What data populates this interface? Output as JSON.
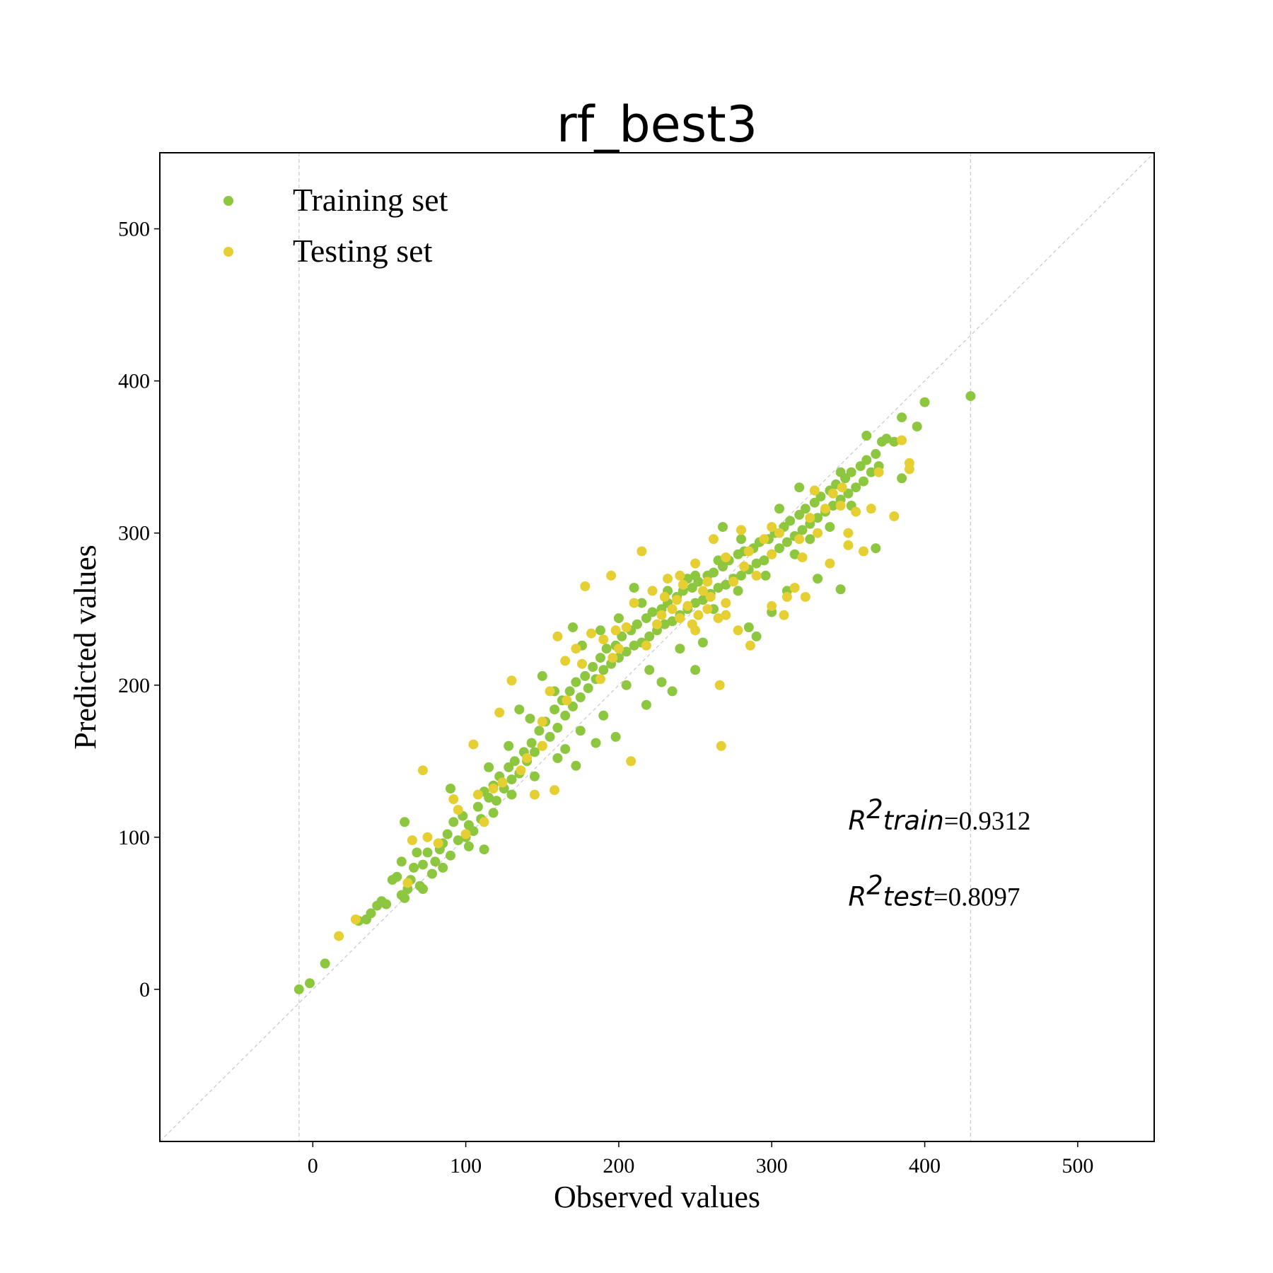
{
  "chart_data": {
    "type": "scatter",
    "title": "rf_best3",
    "xlabel": "Observed values",
    "ylabel": "Predicted values",
    "xlim": [
      -100,
      550
    ],
    "ylim": [
      -100,
      550
    ],
    "xticks": [
      0,
      100,
      200,
      300,
      400,
      500
    ],
    "yticks": [
      0,
      100,
      200,
      300,
      400,
      500
    ],
    "vertical_reference_lines": [
      -9,
      430
    ],
    "diagonal_reference_line": true,
    "legend_position": "upper-left",
    "annotations": {
      "r2_train": {
        "label": "R",
        "sup": "2",
        "name": "train",
        "value": "=0.9312",
        "x": 350,
        "y": 105
      },
      "r2_test": {
        "label": "R",
        "sup": "2",
        "name": "test",
        "value": "=0.8097",
        "x": 350,
        "y": 55
      }
    },
    "series": [
      {
        "name": "Training set",
        "color": "#8dc63f",
        "points": [
          [
            -9,
            0
          ],
          [
            -2,
            4
          ],
          [
            8,
            17
          ],
          [
            30,
            45
          ],
          [
            35,
            46
          ],
          [
            38,
            50
          ],
          [
            42,
            55
          ],
          [
            45,
            58
          ],
          [
            48,
            56
          ],
          [
            52,
            72
          ],
          [
            55,
            74
          ],
          [
            58,
            84
          ],
          [
            60,
            60
          ],
          [
            62,
            66
          ],
          [
            64,
            72
          ],
          [
            66,
            80
          ],
          [
            68,
            90
          ],
          [
            70,
            68
          ],
          [
            72,
            82
          ],
          [
            75,
            90
          ],
          [
            78,
            76
          ],
          [
            80,
            84
          ],
          [
            83,
            92
          ],
          [
            85,
            96
          ],
          [
            88,
            102
          ],
          [
            90,
            88
          ],
          [
            92,
            110
          ],
          [
            95,
            98
          ],
          [
            98,
            114
          ],
          [
            100,
            100
          ],
          [
            102,
            108
          ],
          [
            105,
            104
          ],
          [
            108,
            120
          ],
          [
            110,
            112
          ],
          [
            112,
            130
          ],
          [
            115,
            126
          ],
          [
            118,
            134
          ],
          [
            120,
            124
          ],
          [
            122,
            140
          ],
          [
            125,
            132
          ],
          [
            128,
            146
          ],
          [
            130,
            138
          ],
          [
            132,
            150
          ],
          [
            135,
            142
          ],
          [
            138,
            156
          ],
          [
            140,
            150
          ],
          [
            143,
            162
          ],
          [
            145,
            156
          ],
          [
            148,
            170
          ],
          [
            150,
            160
          ],
          [
            152,
            176
          ],
          [
            155,
            166
          ],
          [
            158,
            184
          ],
          [
            160,
            172
          ],
          [
            163,
            190
          ],
          [
            165,
            180
          ],
          [
            168,
            196
          ],
          [
            170,
            186
          ],
          [
            172,
            202
          ],
          [
            175,
            192
          ],
          [
            178,
            206
          ],
          [
            180,
            198
          ],
          [
            183,
            212
          ],
          [
            185,
            204
          ],
          [
            188,
            218
          ],
          [
            190,
            210
          ],
          [
            192,
            224
          ],
          [
            195,
            214
          ],
          [
            198,
            226
          ],
          [
            200,
            218
          ],
          [
            202,
            232
          ],
          [
            205,
            222
          ],
          [
            208,
            236
          ],
          [
            210,
            226
          ],
          [
            212,
            240
          ],
          [
            215,
            228
          ],
          [
            218,
            244
          ],
          [
            220,
            232
          ],
          [
            222,
            248
          ],
          [
            225,
            236
          ],
          [
            228,
            250
          ],
          [
            230,
            240
          ],
          [
            232,
            254
          ],
          [
            235,
            242
          ],
          [
            238,
            258
          ],
          [
            240,
            246
          ],
          [
            242,
            262
          ],
          [
            245,
            250
          ],
          [
            248,
            264
          ],
          [
            250,
            254
          ],
          [
            252,
            268
          ],
          [
            255,
            256
          ],
          [
            258,
            272
          ],
          [
            260,
            260
          ],
          [
            262,
            274
          ],
          [
            265,
            264
          ],
          [
            268,
            278
          ],
          [
            270,
            266
          ],
          [
            272,
            282
          ],
          [
            275,
            270
          ],
          [
            278,
            286
          ],
          [
            280,
            272
          ],
          [
            282,
            288
          ],
          [
            285,
            276
          ],
          [
            288,
            290
          ],
          [
            290,
            280
          ],
          [
            292,
            294
          ],
          [
            295,
            282
          ],
          [
            298,
            296
          ],
          [
            300,
            286
          ],
          [
            302,
            300
          ],
          [
            305,
            290
          ],
          [
            308,
            304
          ],
          [
            310,
            294
          ],
          [
            312,
            308
          ],
          [
            315,
            298
          ],
          [
            318,
            312
          ],
          [
            320,
            302
          ],
          [
            322,
            316
          ],
          [
            325,
            306
          ],
          [
            328,
            320
          ],
          [
            330,
            310
          ],
          [
            332,
            324
          ],
          [
            335,
            314
          ],
          [
            338,
            328
          ],
          [
            340,
            318
          ],
          [
            342,
            332
          ],
          [
            345,
            322
          ],
          [
            348,
            336
          ],
          [
            350,
            326
          ],
          [
            352,
            340
          ],
          [
            355,
            330
          ],
          [
            358,
            344
          ],
          [
            360,
            334
          ],
          [
            362,
            348
          ],
          [
            365,
            340
          ],
          [
            368,
            352
          ],
          [
            370,
            344
          ],
          [
            372,
            360
          ],
          [
            375,
            362
          ],
          [
            380,
            360
          ],
          [
            385,
            376
          ],
          [
            395,
            370
          ],
          [
            400,
            386
          ],
          [
            430,
            390
          ],
          [
            60,
            110
          ],
          [
            90,
            132
          ],
          [
            112,
            92
          ],
          [
            135,
            184
          ],
          [
            150,
            206
          ],
          [
            160,
            152
          ],
          [
            172,
            147
          ],
          [
            185,
            162
          ],
          [
            198,
            166
          ],
          [
            210,
            264
          ],
          [
            218,
            187
          ],
          [
            228,
            202
          ],
          [
            235,
            196
          ],
          [
            250,
            210
          ],
          [
            268,
            304
          ],
          [
            285,
            238
          ],
          [
            310,
            262
          ],
          [
            345,
            263
          ],
          [
            345,
            340
          ],
          [
            362,
            364
          ],
          [
            368,
            290
          ],
          [
            385,
            336
          ],
          [
            330,
            270
          ],
          [
            300,
            248
          ],
          [
            290,
            232
          ],
          [
            255,
            228
          ],
          [
            240,
            224
          ],
          [
            220,
            210
          ],
          [
            205,
            200
          ],
          [
            190,
            180
          ],
          [
            175,
            170
          ],
          [
            165,
            158
          ],
          [
            145,
            140
          ],
          [
            130,
            128
          ],
          [
            118,
            116
          ],
          [
            102,
            94
          ],
          [
            85,
            80
          ],
          [
            72,
            66
          ],
          [
            58,
            62
          ],
          [
            245,
            270
          ],
          [
            262,
            250
          ],
          [
            278,
            262
          ],
          [
            296,
            272
          ],
          [
            315,
            286
          ],
          [
            325,
            296
          ],
          [
            338,
            304
          ],
          [
            352,
            318
          ],
          [
            318,
            330
          ],
          [
            305,
            316
          ],
          [
            280,
            296
          ],
          [
            265,
            282
          ],
          [
            250,
            272
          ],
          [
            232,
            262
          ],
          [
            215,
            254
          ],
          [
            200,
            244
          ],
          [
            188,
            236
          ],
          [
            176,
            226
          ],
          [
            170,
            238
          ],
          [
            158,
            196
          ],
          [
            142,
            178
          ],
          [
            128,
            160
          ],
          [
            115,
            146
          ]
        ]
      },
      {
        "name": "Testing set",
        "color": "#e6cf33",
        "points": [
          [
            17,
            35
          ],
          [
            28,
            46
          ],
          [
            62,
            70
          ],
          [
            65,
            98
          ],
          [
            72,
            144
          ],
          [
            75,
            100
          ],
          [
            82,
            96
          ],
          [
            92,
            125
          ],
          [
            95,
            118
          ],
          [
            100,
            102
          ],
          [
            105,
            161
          ],
          [
            108,
            128
          ],
          [
            112,
            110
          ],
          [
            118,
            132
          ],
          [
            122,
            182
          ],
          [
            130,
            203
          ],
          [
            140,
            152
          ],
          [
            145,
            128
          ],
          [
            150,
            176
          ],
          [
            155,
            196
          ],
          [
            158,
            131
          ],
          [
            160,
            232
          ],
          [
            165,
            216
          ],
          [
            172,
            224
          ],
          [
            178,
            265
          ],
          [
            182,
            234
          ],
          [
            190,
            230
          ],
          [
            195,
            272
          ],
          [
            198,
            236
          ],
          [
            200,
            224
          ],
          [
            205,
            238
          ],
          [
            208,
            150
          ],
          [
            210,
            254
          ],
          [
            215,
            288
          ],
          [
            218,
            226
          ],
          [
            222,
            262
          ],
          [
            225,
            240
          ],
          [
            228,
            246
          ],
          [
            232,
            270
          ],
          [
            235,
            250
          ],
          [
            238,
            256
          ],
          [
            240,
            244
          ],
          [
            242,
            266
          ],
          [
            245,
            252
          ],
          [
            248,
            240
          ],
          [
            250,
            280
          ],
          [
            252,
            246
          ],
          [
            255,
            262
          ],
          [
            258,
            250
          ],
          [
            260,
            258
          ],
          [
            262,
            296
          ],
          [
            265,
            244
          ],
          [
            266,
            200
          ],
          [
            267,
            160
          ],
          [
            270,
            284
          ],
          [
            275,
            268
          ],
          [
            280,
            302
          ],
          [
            285,
            288
          ],
          [
            290,
            272
          ],
          [
            295,
            296
          ],
          [
            300,
            286
          ],
          [
            305,
            300
          ],
          [
            310,
            258
          ],
          [
            315,
            264
          ],
          [
            320,
            284
          ],
          [
            325,
            310
          ],
          [
            330,
            300
          ],
          [
            335,
            316
          ],
          [
            340,
            326
          ],
          [
            345,
            318
          ],
          [
            350,
            300
          ],
          [
            355,
            314
          ],
          [
            360,
            288
          ],
          [
            365,
            316
          ],
          [
            370,
            340
          ],
          [
            380,
            311
          ],
          [
            385,
            361
          ],
          [
            390,
            346
          ],
          [
            390,
            342
          ],
          [
            240,
            272
          ],
          [
            230,
            258
          ],
          [
            250,
            236
          ],
          [
            258,
            268
          ],
          [
            270,
            254
          ],
          [
            282,
            278
          ],
          [
            300,
            304
          ],
          [
            318,
            296
          ],
          [
            328,
            328
          ],
          [
            346,
            330
          ],
          [
            196,
            218
          ],
          [
            188,
            204
          ],
          [
            176,
            214
          ],
          [
            166,
            190
          ],
          [
            150,
            160
          ],
          [
            136,
            144
          ],
          [
            124,
            136
          ],
          [
            270,
            246
          ],
          [
            278,
            236
          ],
          [
            286,
            226
          ],
          [
            300,
            252
          ],
          [
            308,
            246
          ],
          [
            322,
            258
          ],
          [
            338,
            280
          ],
          [
            350,
            292
          ]
        ]
      }
    ]
  }
}
